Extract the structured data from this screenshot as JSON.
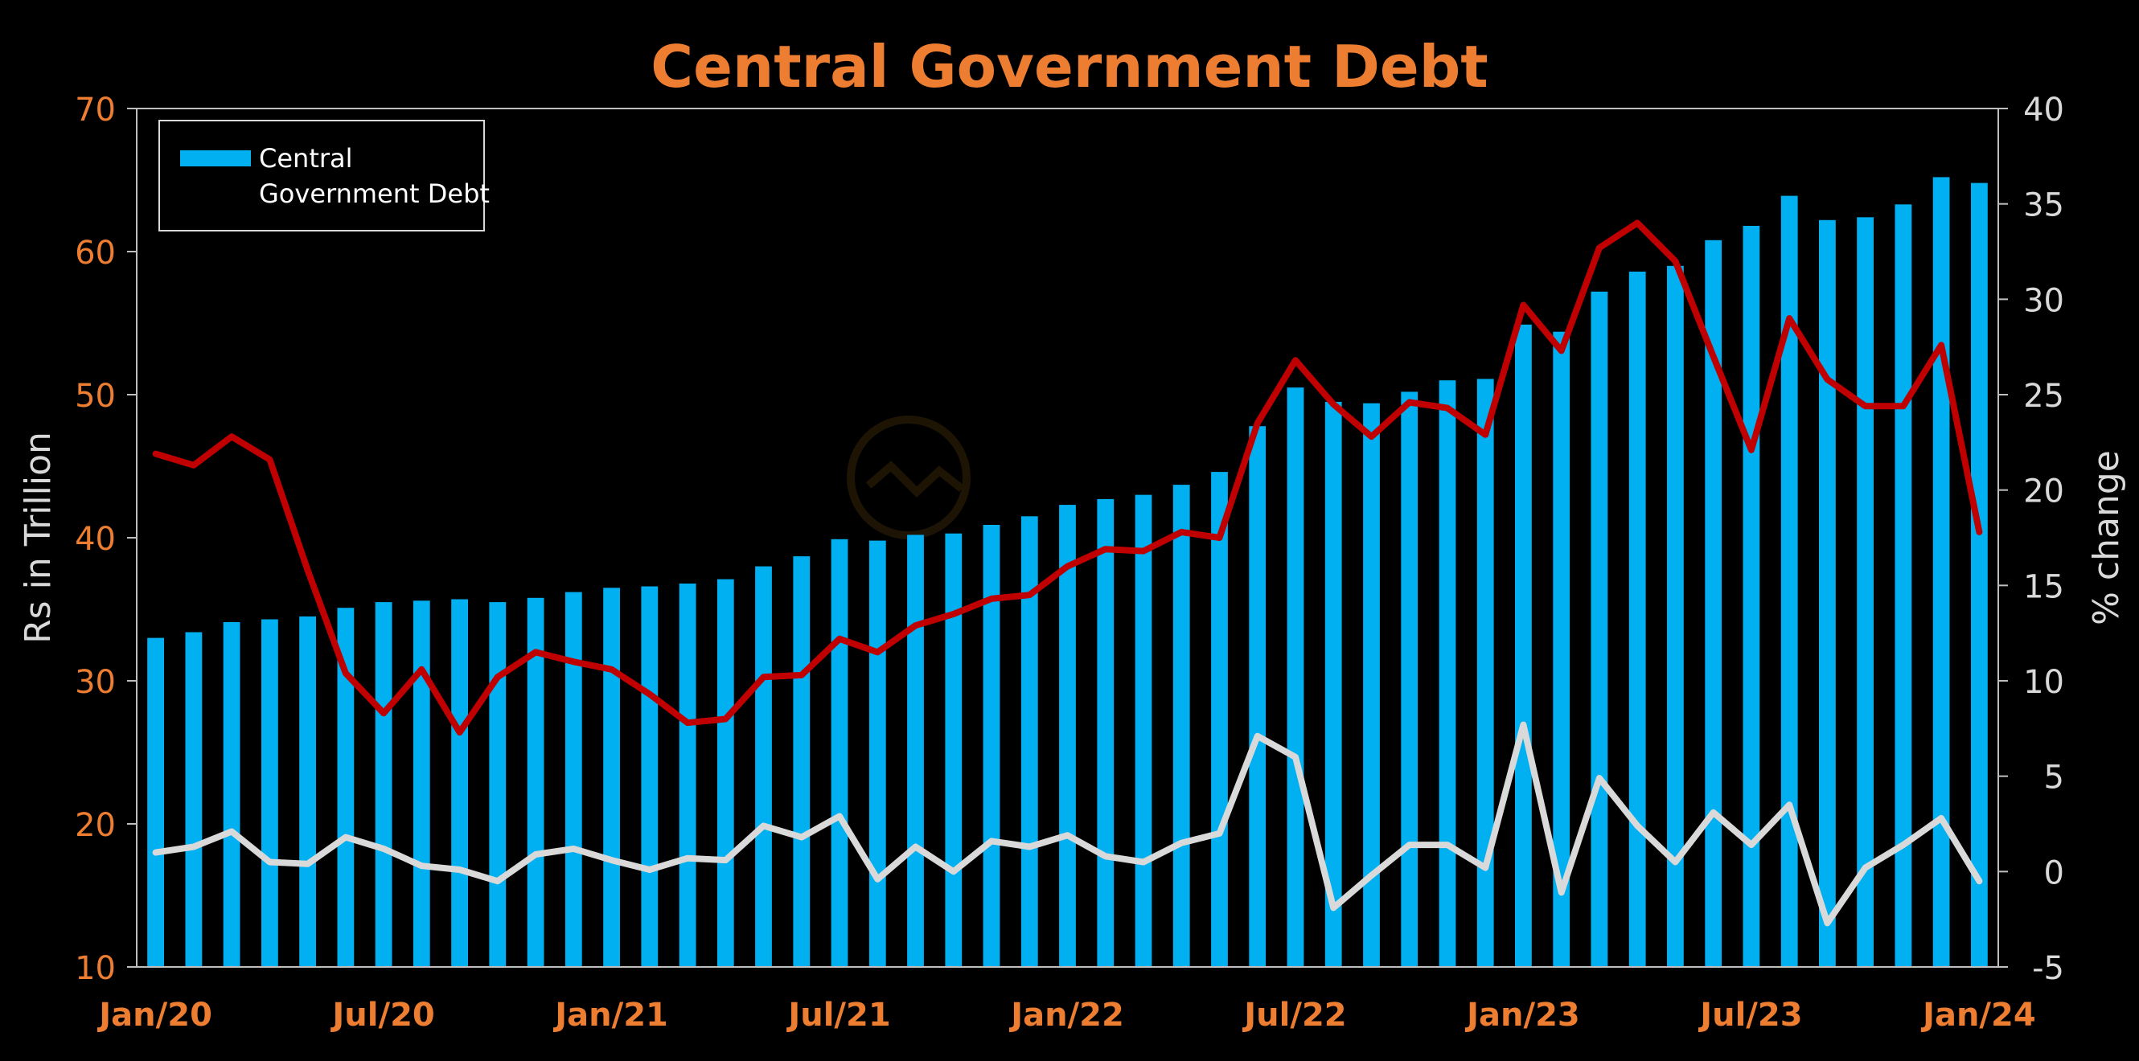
{
  "colors": {
    "background": "#000000",
    "bar": "#00b0f0",
    "line_yoy": "#c00000",
    "line_mom": "#d9d9d9",
    "title": "#ed7d31",
    "tick_left": "#ed7d31",
    "tick_right": "#d9d9d9",
    "axis_title": "#d9d9d9",
    "xtick": "#ed7d31",
    "legend_text": "#ffffff",
    "axis_line": "#bfbfbf"
  },
  "chart_data": {
    "type": "bar",
    "title": "Central Government Debt",
    "xlabel": "",
    "ylabel": "Rs in Trillion",
    "y2label": "% change",
    "ylim": [
      10,
      70
    ],
    "y2lim": [
      -5,
      40
    ],
    "yticks": [
      10,
      20,
      30,
      40,
      50,
      60,
      70
    ],
    "y2ticks": [
      -5,
      0,
      5,
      10,
      15,
      20,
      25,
      30,
      35,
      40
    ],
    "xtick_labels": [
      {
        "index": 0,
        "label": "Jan/20"
      },
      {
        "index": 6,
        "label": "Jul/20"
      },
      {
        "index": 12,
        "label": "Jan/21"
      },
      {
        "index": 18,
        "label": "Jul/21"
      },
      {
        "index": 24,
        "label": "Jan/22"
      },
      {
        "index": 30,
        "label": "Jul/22"
      },
      {
        "index": 36,
        "label": "Jan/23"
      },
      {
        "index": 42,
        "label": "Jul/23"
      },
      {
        "index": 48,
        "label": "Jan/24"
      }
    ],
    "legend": {
      "position": "top-left",
      "entries": [
        "Central",
        "Government Debt"
      ]
    },
    "grid": false,
    "x": [
      "Jan/20",
      "Feb/20",
      "Mar/20",
      "Apr/20",
      "May/20",
      "Jun/20",
      "Jul/20",
      "Aug/20",
      "Sep/20",
      "Oct/20",
      "Nov/20",
      "Dec/20",
      "Jan/21",
      "Feb/21",
      "Mar/21",
      "Apr/21",
      "May/21",
      "Jun/21",
      "Jul/21",
      "Aug/21",
      "Sep/21",
      "Oct/21",
      "Nov/21",
      "Dec/21",
      "Jan/22",
      "Feb/22",
      "Mar/22",
      "Apr/22",
      "May/22",
      "Jun/22",
      "Jul/22",
      "Aug/22",
      "Sep/22",
      "Oct/22",
      "Nov/22",
      "Dec/22",
      "Jan/23",
      "Feb/23",
      "Mar/23",
      "Apr/23",
      "May/23",
      "Jun/23",
      "Jul/23",
      "Aug/23",
      "Sep/23",
      "Oct/23",
      "Nov/23",
      "Dec/23",
      "Jan/24"
    ],
    "series": [
      {
        "name": "Central Government Debt",
        "kind": "bar",
        "axis": "left",
        "values": [
          33.0,
          33.4,
          34.1,
          34.3,
          34.5,
          35.1,
          35.5,
          35.6,
          35.7,
          35.5,
          35.8,
          36.2,
          36.5,
          36.6,
          36.8,
          37.1,
          38.0,
          38.7,
          39.9,
          39.8,
          40.2,
          40.3,
          40.9,
          41.5,
          42.3,
          42.7,
          43.0,
          43.7,
          44.6,
          47.8,
          50.5,
          49.5,
          49.4,
          50.2,
          51.0,
          51.1,
          54.9,
          54.4,
          57.2,
          58.6,
          59.0,
          60.8,
          61.8,
          63.9,
          62.2,
          62.4,
          63.3,
          65.2,
          64.8
        ]
      },
      {
        "kind": "line",
        "axis": "right",
        "values": [
          21.9,
          21.3,
          22.8,
          21.6,
          15.8,
          10.4,
          8.3,
          10.6,
          7.3,
          10.2,
          11.5,
          11.0,
          10.6,
          9.3,
          7.8,
          8.0,
          10.2,
          10.3,
          12.2,
          11.5,
          12.9,
          13.5,
          14.3,
          14.5,
          16.0,
          16.9,
          16.8,
          17.8,
          17.5,
          23.5,
          26.8,
          24.5,
          22.8,
          24.6,
          24.3,
          22.9,
          29.7,
          27.3,
          32.7,
          34.0,
          32.0,
          27.0,
          22.1,
          29.0,
          25.8,
          24.4,
          24.4,
          27.6,
          17.8
        ]
      },
      {
        "kind": "line",
        "axis": "right",
        "values": [
          1.0,
          1.3,
          2.1,
          0.5,
          0.4,
          1.8,
          1.2,
          0.3,
          0.1,
          -0.5,
          0.9,
          1.2,
          0.6,
          0.1,
          0.7,
          0.6,
          2.4,
          1.8,
          2.9,
          -0.4,
          1.3,
          0.0,
          1.6,
          1.3,
          1.9,
          0.8,
          0.5,
          1.5,
          2.0,
          7.1,
          6.0,
          -1.9,
          -0.2,
          1.4,
          1.4,
          0.2,
          7.7,
          -1.1,
          4.9,
          2.4,
          0.5,
          3.1,
          1.4,
          3.5,
          -2.7,
          0.2,
          1.4,
          2.8,
          -0.5
        ]
      }
    ]
  }
}
